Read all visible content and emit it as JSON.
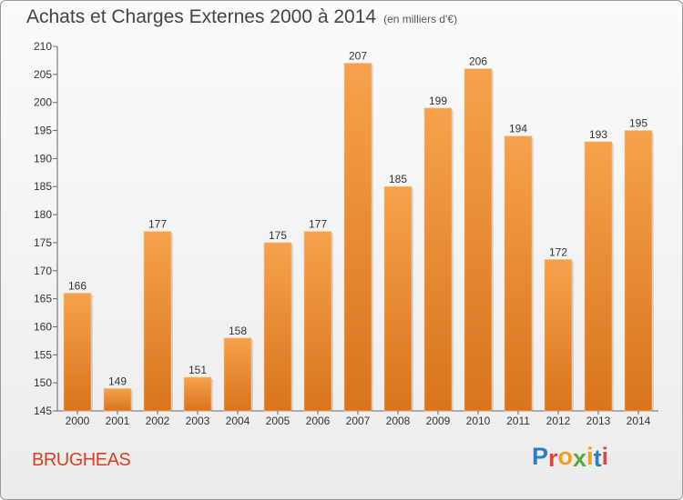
{
  "header": {
    "title": "Achats et Charges Externes 2000 à 2014",
    "unit": "(en milliers d'€)"
  },
  "footer": {
    "city": "BRUGHEAS",
    "logo": "Proxiti",
    "logo_letters": [
      "P",
      "r",
      "o",
      "x",
      "i",
      "t",
      "i"
    ]
  },
  "colors": {
    "bar_light": "#f6a24c",
    "bar_dark": "#d8741d",
    "city": "#d9401e",
    "logo": [
      "#2e7fc1",
      "#e2463a",
      "#f0a021",
      "#58a83a",
      "#f0a021",
      "#2e7fc1",
      "#e2463a"
    ]
  },
  "chart_data": {
    "type": "bar",
    "title": "Achats et Charges Externes 2000 à 2014",
    "subtitle": "(en milliers d'€)",
    "categories": [
      "2000",
      "2001",
      "2002",
      "2003",
      "2004",
      "2005",
      "2006",
      "2007",
      "2008",
      "2009",
      "2010",
      "2011",
      "2012",
      "2013",
      "2014"
    ],
    "values": [
      166,
      149,
      177,
      151,
      158,
      175,
      177,
      207,
      185,
      199,
      206,
      194,
      172,
      193,
      195
    ],
    "ylim": [
      145,
      210
    ],
    "yticks": [
      145,
      150,
      155,
      160,
      165,
      170,
      175,
      180,
      185,
      190,
      195,
      200,
      205,
      210
    ],
    "grid": false,
    "xlabel": "",
    "ylabel": ""
  }
}
